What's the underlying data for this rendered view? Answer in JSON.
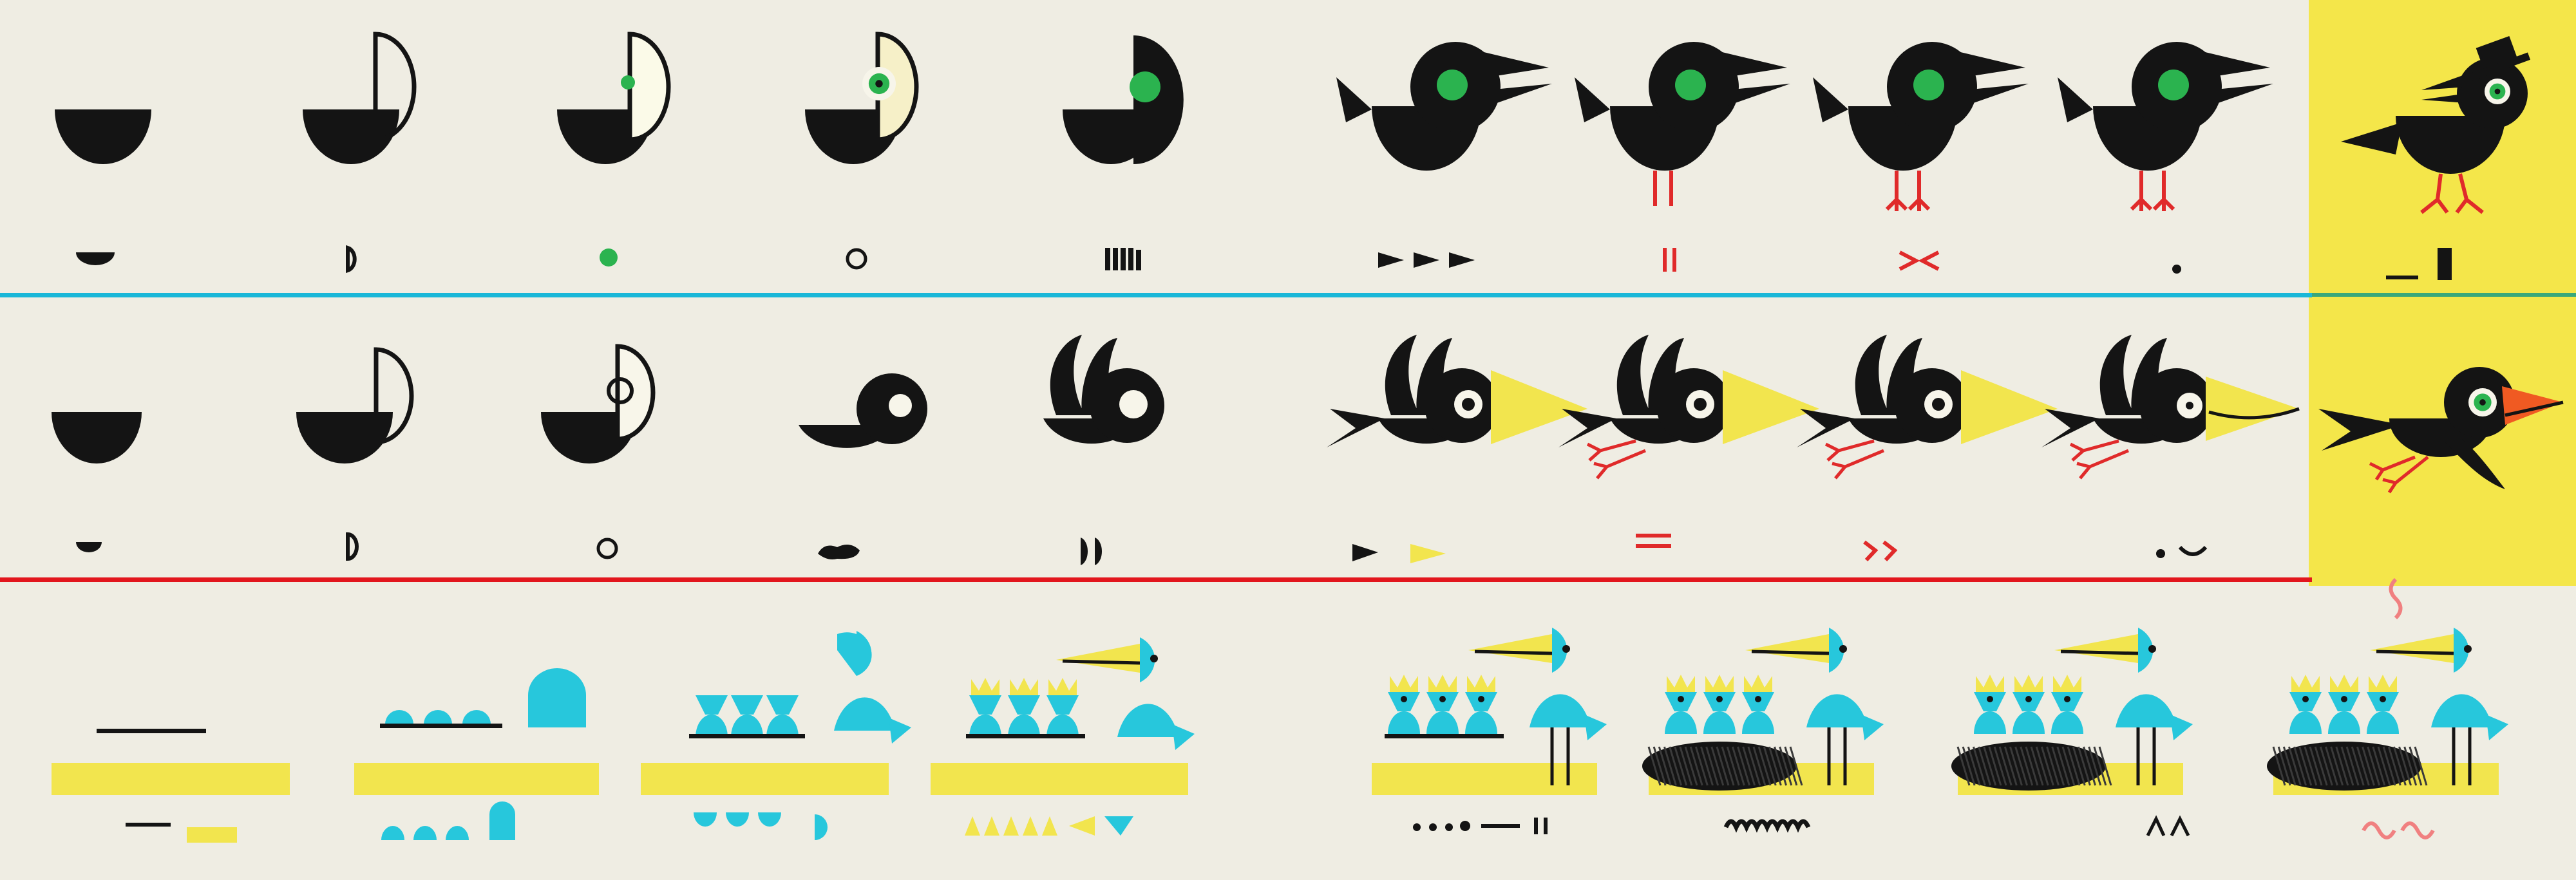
{
  "palette": {
    "background": "#efede3",
    "ink": "#141414",
    "green": "#2bb34f",
    "yellow": "#f2e54e",
    "cyan": "#27c7dc",
    "red": "#e02a2a",
    "orange": "#f05a22",
    "pink": "#f08080",
    "blue_line": "#19b7d8",
    "red_line": "#e2161d",
    "panel_yellow": "#f4e64a"
  },
  "rows": [
    {
      "name": "row-1",
      "theme": "perching black bird drawn step by step",
      "frames": 10
    },
    {
      "name": "row-2",
      "theme": "flying black bird drawn step by step",
      "frames": 10
    },
    {
      "name": "row-3",
      "theme": "blue chicks and parent bird in nest drawn step by step",
      "frames": 8
    }
  ]
}
